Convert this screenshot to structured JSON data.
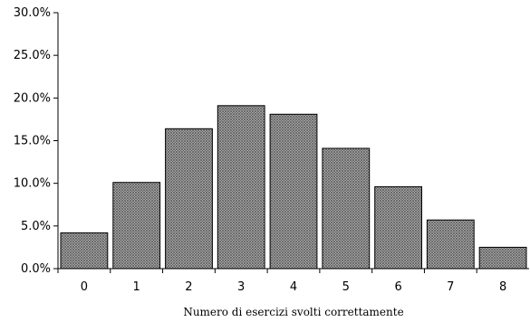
{
  "chart_data": {
    "type": "bar",
    "categories": [
      "0",
      "1",
      "2",
      "3",
      "4",
      "5",
      "6",
      "7",
      "8"
    ],
    "values": [
      4.2,
      10.1,
      16.4,
      19.1,
      18.1,
      14.1,
      9.6,
      5.7,
      2.5
    ],
    "ylim": [
      0,
      30
    ],
    "yticks": [
      "0.0%",
      "5.0%",
      "10.0%",
      "15.0%",
      "20.0%",
      "25.0%",
      "30.0%"
    ],
    "xlabel": "Numero di esercizi svolti correttamente",
    "ylabel": "",
    "title": "",
    "grid": false,
    "legend": "none",
    "bar_fill": "crosshatch gray"
  }
}
